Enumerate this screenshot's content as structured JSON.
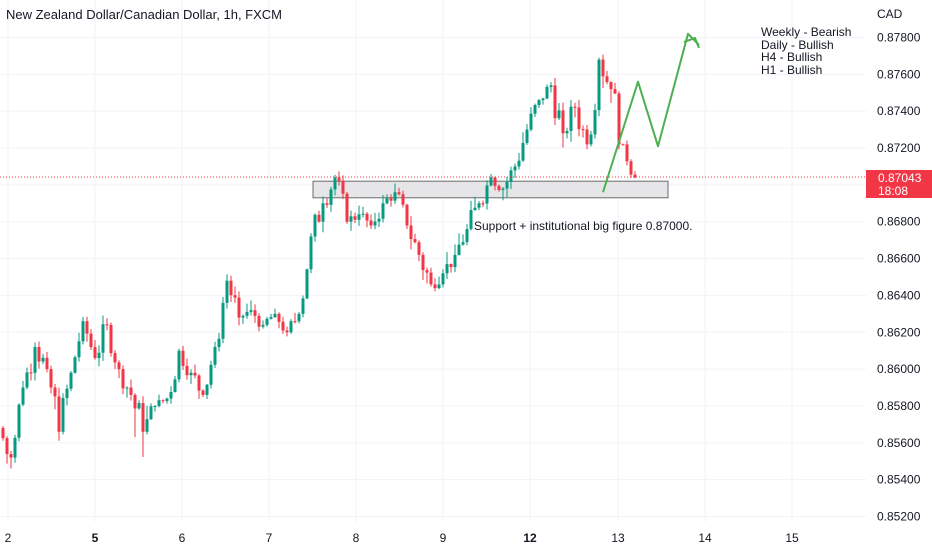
{
  "header": {
    "title": "New Zealand Dollar/Canadian Dollar, 1h, FXCM",
    "currency": "CAD"
  },
  "bias_notes": [
    "Weekly - Bearish",
    "Daily - Bullish",
    "H4 - Bullish",
    "H1 - Bullish"
  ],
  "support_note": "Support + institutional big figure 0.87000.",
  "price_badge": {
    "price": "0.87043",
    "countdown": "18:08"
  },
  "colors": {
    "up": "#089981",
    "down": "#f23645",
    "projection": "#4caf50",
    "zone_fill": "#e6e6e8",
    "zone_stroke": "#6b6b6b"
  },
  "chart_data": {
    "type": "candlestick",
    "title": "New Zealand Dollar/Canadian Dollar, 1h, FXCM",
    "ylabel": "CAD",
    "ylim": [
      0.8512,
      0.8787
    ],
    "yticks": [
      "0.85200",
      "0.85400",
      "0.85600",
      "0.85800",
      "0.86000",
      "0.86200",
      "0.86400",
      "0.86600",
      "0.86800",
      "0.87000",
      "0.87200",
      "0.87400",
      "0.87600",
      "0.87800"
    ],
    "xticks": [
      {
        "label": "2",
        "bold": false
      },
      {
        "label": "5",
        "bold": true
      },
      {
        "label": "6",
        "bold": false
      },
      {
        "label": "7",
        "bold": false
      },
      {
        "label": "8",
        "bold": false
      },
      {
        "label": "9",
        "bold": false
      },
      {
        "label": "12",
        "bold": true
      },
      {
        "label": "13",
        "bold": false
      },
      {
        "label": "14",
        "bold": false
      },
      {
        "label": "15",
        "bold": false
      }
    ],
    "last_price": 0.87043,
    "support_zone": [
      0.8693,
      0.8702
    ],
    "anchors": [
      [
        0.8568,
        0.8552,
        0.857,
        0.854
      ],
      [
        0.8552,
        0.859,
        0.8596,
        0.8548
      ],
      [
        0.859,
        0.8612,
        0.8618,
        0.8585
      ],
      [
        0.8612,
        0.86,
        0.862,
        0.8592
      ],
      [
        0.86,
        0.8566,
        0.8606,
        0.8542
      ],
      [
        0.8566,
        0.8598,
        0.8604,
        0.856
      ],
      [
        0.8598,
        0.8626,
        0.8634,
        0.8594
      ],
      [
        0.8626,
        0.8606,
        0.8632,
        0.86
      ],
      [
        0.8606,
        0.8624,
        0.863,
        0.86
      ],
      [
        0.8624,
        0.86,
        0.8628,
        0.8594
      ],
      [
        0.86,
        0.8586,
        0.8606,
        0.858
      ],
      [
        0.8586,
        0.8566,
        0.8592,
        0.8542
      ],
      [
        0.8566,
        0.858,
        0.859,
        0.856
      ],
      [
        0.858,
        0.8584,
        0.8588,
        0.8576
      ],
      [
        0.8584,
        0.861,
        0.8622,
        0.858
      ],
      [
        0.861,
        0.8598,
        0.8616,
        0.8592
      ],
      [
        0.8598,
        0.8586,
        0.8606,
        0.858
      ],
      [
        0.8586,
        0.8612,
        0.8618,
        0.8582
      ],
      [
        0.8612,
        0.8648,
        0.8652,
        0.8608
      ],
      [
        0.8648,
        0.8628,
        0.8654,
        0.8622
      ],
      [
        0.8628,
        0.8632,
        0.864,
        0.8624
      ],
      [
        0.8632,
        0.8624,
        0.8636,
        0.8618
      ],
      [
        0.8624,
        0.863,
        0.8636,
        0.862
      ],
      [
        0.863,
        0.862,
        0.8634,
        0.8614
      ],
      [
        0.862,
        0.863,
        0.8636,
        0.8618
      ],
      [
        0.863,
        0.8672,
        0.8676,
        0.8626
      ],
      [
        0.8672,
        0.869,
        0.8696,
        0.8664
      ],
      [
        0.869,
        0.8704,
        0.871,
        0.8684
      ],
      [
        0.8704,
        0.868,
        0.8708,
        0.8672
      ],
      [
        0.868,
        0.8684,
        0.869,
        0.8674
      ],
      [
        0.8684,
        0.8678,
        0.869,
        0.8672
      ],
      [
        0.8678,
        0.869,
        0.87,
        0.8674
      ],
      [
        0.869,
        0.8696,
        0.8702,
        0.8686
      ],
      [
        0.8696,
        0.8678,
        0.8702,
        0.8672
      ],
      [
        0.8678,
        0.8662,
        0.8684,
        0.8654
      ],
      [
        0.8662,
        0.8646,
        0.8668,
        0.8634
      ],
      [
        0.8646,
        0.8652,
        0.866,
        0.8642
      ],
      [
        0.8652,
        0.8662,
        0.867,
        0.8648
      ],
      [
        0.8662,
        0.8676,
        0.8684,
        0.8656
      ],
      [
        0.8676,
        0.869,
        0.87,
        0.8672
      ],
      [
        0.869,
        0.8704,
        0.871,
        0.8686
      ],
      [
        0.8704,
        0.8698,
        0.8706,
        0.869
      ],
      [
        0.8698,
        0.871,
        0.8716,
        0.8692
      ],
      [
        0.871,
        0.873,
        0.8738,
        0.8706
      ],
      [
        0.873,
        0.8746,
        0.8752,
        0.8726
      ],
      [
        0.8746,
        0.8754,
        0.8758,
        0.874
      ],
      [
        0.8754,
        0.8728,
        0.876,
        0.8718
      ],
      [
        0.8728,
        0.8742,
        0.8748,
        0.872
      ],
      [
        0.8742,
        0.8722,
        0.8748,
        0.8714
      ],
      [
        0.8722,
        0.8768,
        0.8772,
        0.8718
      ],
      [
        0.8768,
        0.8752,
        0.8772,
        0.874
      ],
      [
        0.8752,
        0.8722,
        0.8758,
        0.8712
      ],
      [
        0.8722,
        0.8704,
        0.8726,
        0.87
      ]
    ],
    "projection_path": [
      0.8696,
      0.8756,
      0.8721,
      0.8782,
      0.8776
    ]
  }
}
